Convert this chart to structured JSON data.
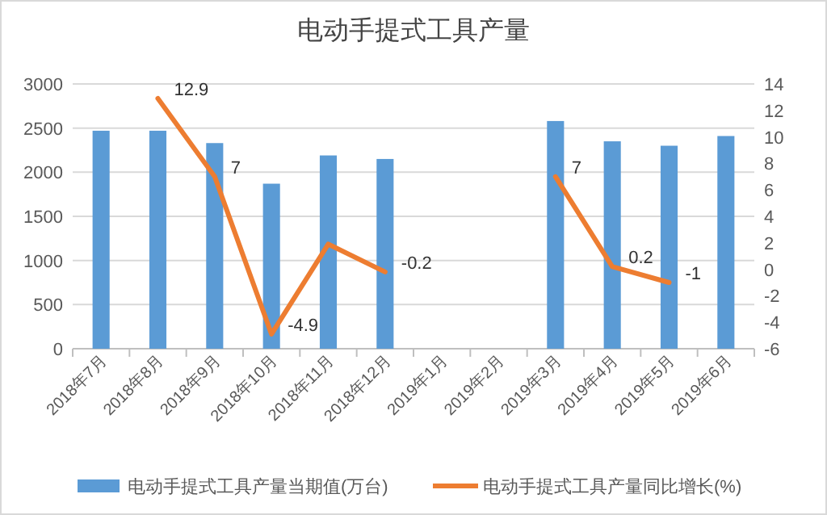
{
  "chart_data": {
    "type": "bar",
    "title": "电动手提式工具产量",
    "categories": [
      "2018年7月",
      "2018年8月",
      "2018年9月",
      "2018年10月",
      "2018年11月",
      "2018年12月",
      "2019年1月",
      "2019年2月",
      "2019年3月",
      "2019年4月",
      "2019年5月",
      "2019年6月"
    ],
    "series": [
      {
        "name": "电动手提式工具产量当期值(万台)",
        "color": "#5b9bd5",
        "values": [
          2470,
          2470,
          2330,
          1870,
          2190,
          2150,
          null,
          null,
          2580,
          2350,
          2300,
          2410
        ]
      },
      {
        "name": "电动手提式工具产量同比增长(%)",
        "type": "line",
        "axis": "y2",
        "color": "#ed7d31",
        "values": [
          null,
          12.9,
          7,
          -4.9,
          1.9,
          -0.2,
          null,
          null,
          7,
          0.2,
          -1,
          null
        ],
        "value_labels": [
          null,
          "12.9",
          "7",
          "-4.9",
          null,
          "-0.2",
          null,
          null,
          "7",
          "0.2",
          "-1",
          null
        ]
      }
    ],
    "ylim": [
      0,
      3000
    ],
    "yticks": [
      0,
      500,
      1000,
      1500,
      2000,
      2500,
      3000
    ],
    "y2lim": [
      -6,
      14
    ],
    "y2ticks": [
      -6,
      -4,
      -2,
      0,
      2,
      4,
      6,
      8,
      10,
      12,
      14
    ],
    "grid": "y",
    "legend": "bottom"
  }
}
